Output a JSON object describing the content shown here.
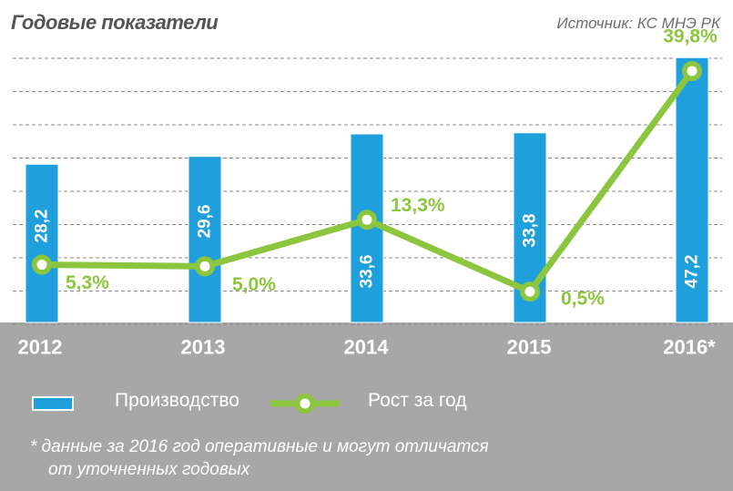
{
  "header": {
    "title": "Годовые показатели",
    "source": "Источник: КС МНЭ РК"
  },
  "legend": {
    "production": "Производство",
    "growth": "Рост за год"
  },
  "note": {
    "line1": "* данные за 2016 год оперативные и могут отличатся",
    "line2": "от уточненных годовых"
  },
  "colors": {
    "bar": "#1fa0dc",
    "line": "#8cc63f",
    "marker_fill": "#ffffff",
    "footer": "#a7a7a7",
    "gridline": "#8a8a8a"
  },
  "chart_data": {
    "type": "bar",
    "categories": [
      "2012",
      "2013",
      "2014",
      "2015",
      "2016*"
    ],
    "series": [
      {
        "type": "bar",
        "values": [
          28.2,
          29.6,
          33.6,
          33.8,
          47.2
        ],
        "labels": [
          "28,2",
          "29,6",
          "33,6",
          "33,8",
          "47,2"
        ]
      },
      {
        "type": "line",
        "values": [
          5.3,
          5.0,
          13.3,
          0.5,
          39.8
        ],
        "labels": [
          "5,3%",
          "5,0%",
          "13,3%",
          "0,5%",
          "39,8%"
        ]
      }
    ],
    "bar_axis_range": [
      0,
      50
    ],
    "line_axis_range": [
      -5,
      45
    ],
    "grid": true,
    "legend_position": "bottom-left"
  }
}
